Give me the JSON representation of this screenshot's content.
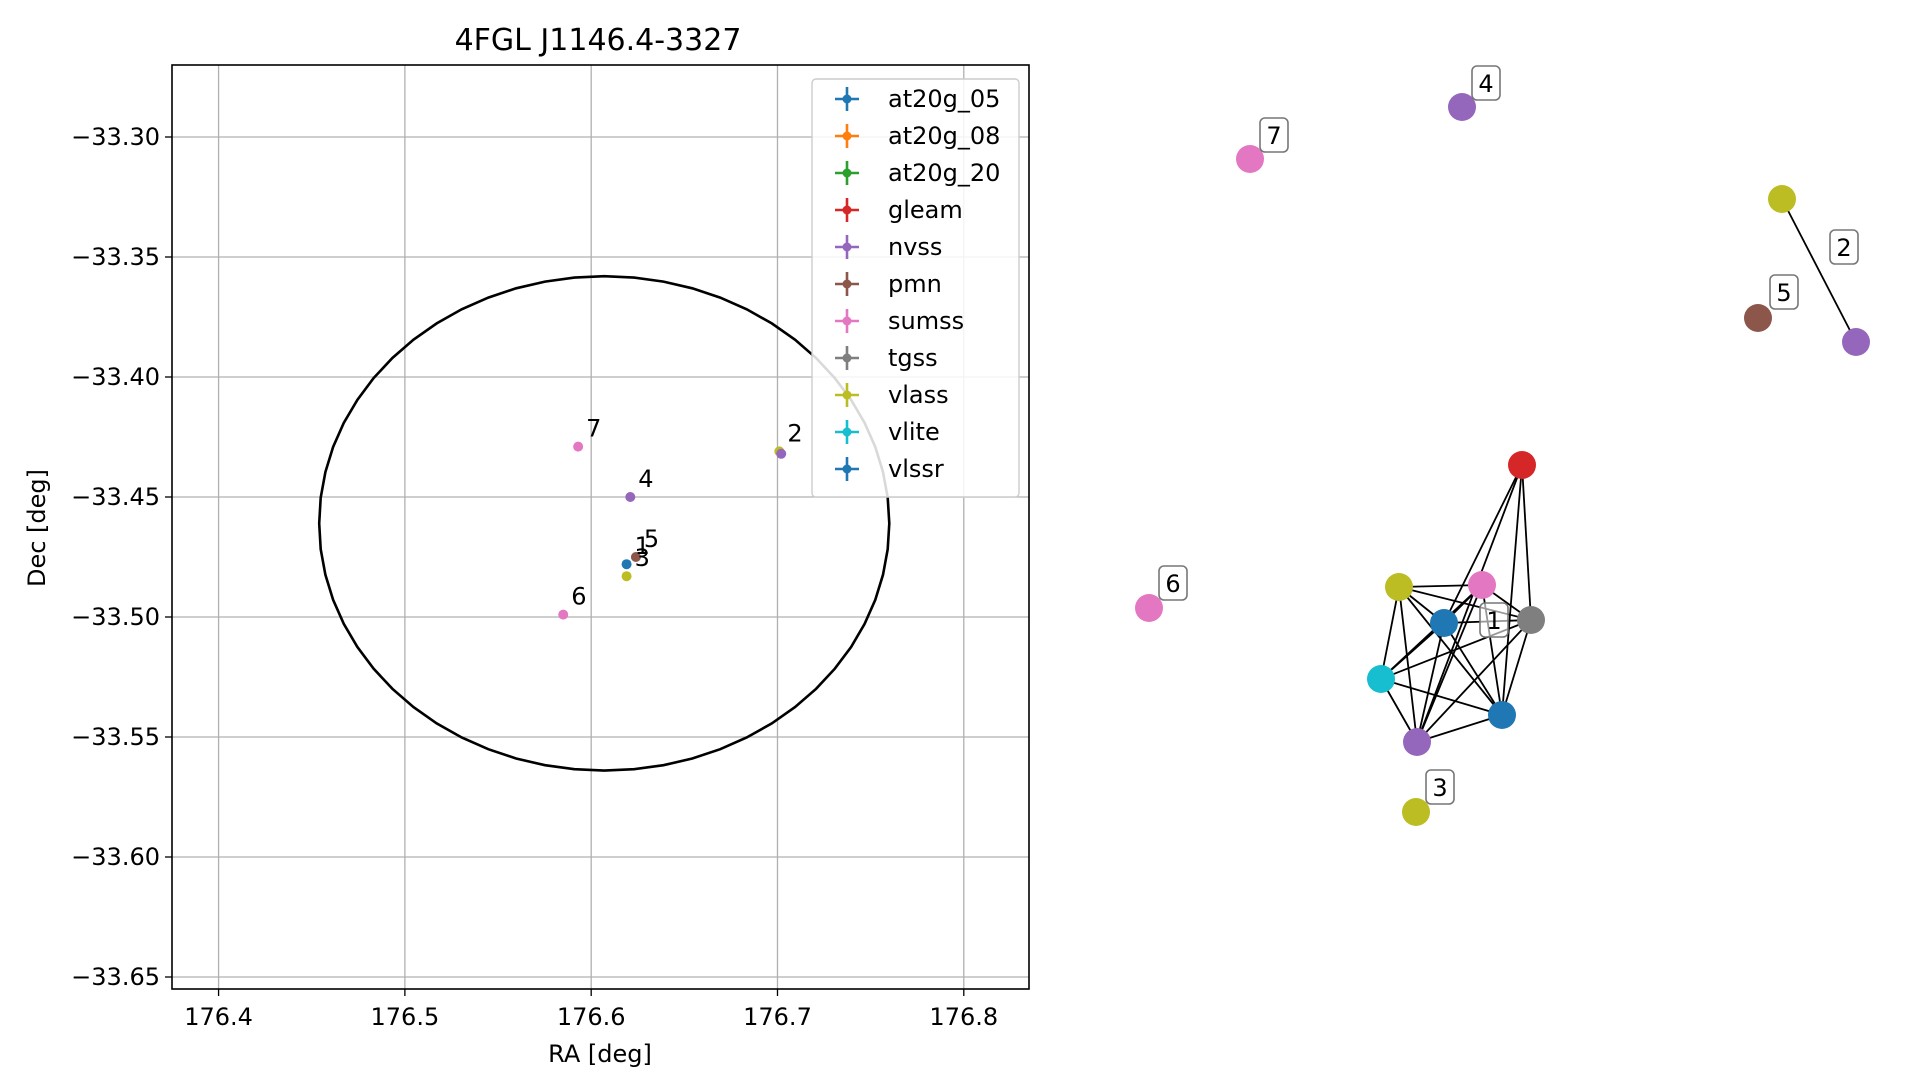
{
  "chart_data": [
    {
      "type": "scatter",
      "title": "4FGL J1146.4-3327",
      "xlabel": "RA [deg]",
      "ylabel": "Dec [deg]",
      "xlim": [
        176.375,
        176.835
      ],
      "ylim": [
        -33.655,
        -33.27
      ],
      "xticks": [
        "176.4",
        "176.5",
        "176.6",
        "176.7",
        "176.8"
      ],
      "xtick_values": [
        176.4,
        176.5,
        176.6,
        176.7,
        176.8
      ],
      "yticks": [
        "−33.30",
        "−33.35",
        "−33.40",
        "−33.45",
        "−33.50",
        "−33.55",
        "−33.60",
        "−33.65"
      ],
      "ytick_values": [
        -33.3,
        -33.35,
        -33.4,
        -33.45,
        -33.5,
        -33.55,
        -33.6,
        -33.65
      ],
      "grid": true,
      "legend_location": "upper right",
      "legend": [
        {
          "name": "at20g_05",
          "color": "#1f77b4"
        },
        {
          "name": "at20g_08",
          "color": "#ff7f0e"
        },
        {
          "name": "at20g_20",
          "color": "#2ca02c"
        },
        {
          "name": "gleam",
          "color": "#d62728"
        },
        {
          "name": "nvss",
          "color": "#9467bd"
        },
        {
          "name": "pmn",
          "color": "#8c564b"
        },
        {
          "name": "sumss",
          "color": "#e377c2"
        },
        {
          "name": "tgss",
          "color": "#7f7f7f"
        },
        {
          "name": "vlass",
          "color": "#bcbd22"
        },
        {
          "name": "vlite",
          "color": "#17becf"
        },
        {
          "name": "vlssr",
          "color": "#1f77b4"
        }
      ],
      "ellipse": {
        "center_ra": 176.607,
        "center_dec": -33.461,
        "semi_ra": 0.153,
        "semi_dec": 0.103
      },
      "points": [
        {
          "ra": 176.619,
          "dec": -33.478,
          "color": "#1f77b4"
        },
        {
          "ra": 176.624,
          "dec": -33.475,
          "color": "#8c564b"
        },
        {
          "ra": 176.619,
          "dec": -33.483,
          "color": "#bcbd22"
        },
        {
          "ra": 176.621,
          "dec": -33.45,
          "color": "#9467bd"
        },
        {
          "ra": 176.701,
          "dec": -33.431,
          "color": "#bcbd22"
        },
        {
          "ra": 176.702,
          "dec": -33.432,
          "color": "#9467bd"
        },
        {
          "ra": 176.593,
          "dec": -33.429,
          "color": "#e377c2"
        },
        {
          "ra": 176.585,
          "dec": -33.499,
          "color": "#e377c2"
        }
      ],
      "annotations": [
        {
          "label": "7",
          "ra": 176.593,
          "dec": -33.429
        },
        {
          "label": "2",
          "ra": 176.701,
          "dec": -33.431
        },
        {
          "label": "4",
          "ra": 176.621,
          "dec": -33.45
        },
        {
          "label": "1",
          "ra": 176.619,
          "dec": -33.478
        },
        {
          "label": "5",
          "ra": 176.624,
          "dec": -33.475
        },
        {
          "label": "3",
          "ra": 176.619,
          "dec": -33.483
        },
        {
          "label": "6",
          "ra": 176.585,
          "dec": -33.499
        }
      ]
    },
    {
      "type": "network",
      "nodes": [
        {
          "id": "n4",
          "color": "#9467bd"
        },
        {
          "id": "n7",
          "color": "#e377c2"
        },
        {
          "id": "n2a",
          "color": "#bcbd22"
        },
        {
          "id": "n2b",
          "color": "#9467bd"
        },
        {
          "id": "n5",
          "color": "#8c564b"
        },
        {
          "id": "gleam",
          "color": "#d62728"
        },
        {
          "id": "vlass1",
          "color": "#bcbd22"
        },
        {
          "id": "sumss1",
          "color": "#e377c2"
        },
        {
          "id": "at20g",
          "color": "#1f77b4"
        },
        {
          "id": "tgss",
          "color": "#7f7f7f"
        },
        {
          "id": "vlite",
          "color": "#17becf"
        },
        {
          "id": "vlssr",
          "color": "#1f77b4"
        },
        {
          "id": "nvss1",
          "color": "#9467bd"
        },
        {
          "id": "n6",
          "color": "#e377c2"
        },
        {
          "id": "n3",
          "color": "#bcbd22"
        }
      ],
      "edges": [
        [
          "n2a",
          "n2b"
        ],
        [
          "gleam",
          "at20g"
        ],
        [
          "gleam",
          "tgss"
        ],
        [
          "gleam",
          "vlssr"
        ],
        [
          "gleam",
          "nvss1"
        ],
        [
          "vlass1",
          "sumss1"
        ],
        [
          "vlass1",
          "tgss"
        ],
        [
          "vlass1",
          "at20g"
        ],
        [
          "vlass1",
          "vlite"
        ],
        [
          "vlass1",
          "vlssr"
        ],
        [
          "vlass1",
          "nvss1"
        ],
        [
          "sumss1",
          "at20g"
        ],
        [
          "sumss1",
          "tgss"
        ],
        [
          "sumss1",
          "vlite"
        ],
        [
          "sumss1",
          "vlssr"
        ],
        [
          "sumss1",
          "nvss1"
        ],
        [
          "at20g",
          "tgss"
        ],
        [
          "at20g",
          "vlite"
        ],
        [
          "at20g",
          "vlssr"
        ],
        [
          "at20g",
          "nvss1"
        ],
        [
          "tgss",
          "vlite"
        ],
        [
          "tgss",
          "vlssr"
        ],
        [
          "tgss",
          "nvss1"
        ],
        [
          "vlite",
          "vlssr"
        ],
        [
          "vlite",
          "nvss1"
        ],
        [
          "vlssr",
          "nvss1"
        ]
      ],
      "labels": [
        {
          "text": "4",
          "node": "n4"
        },
        {
          "text": "7",
          "node": "n7"
        },
        {
          "text": "2",
          "node": "n2a"
        },
        {
          "text": "5",
          "node": "n5"
        },
        {
          "text": "6",
          "node": "n6"
        },
        {
          "text": "1",
          "node": "tgss"
        },
        {
          "text": "3",
          "node": "n3"
        }
      ]
    }
  ]
}
